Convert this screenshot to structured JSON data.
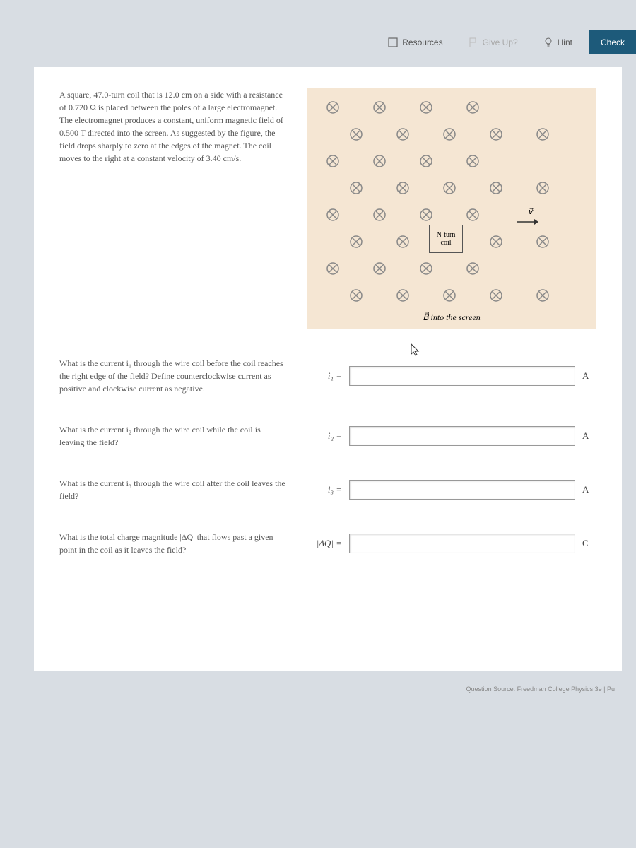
{
  "topbar": {
    "resources_label": "Resources",
    "giveup_label": "Give Up?",
    "hint_label": "Hint",
    "check_label": "Check"
  },
  "problem": {
    "text": "A square, 47.0-turn coil that is 12.0 cm on a side with a resistance of 0.720 Ω is placed between the poles of a large electromagnet. The electromagnet produces a constant, uniform magnetic field of 0.500 T directed into the screen. As suggested by the figure, the field drops sharply to zero at the edges of the magnet. The coil moves to the right at a constant velocity of 3.40 cm/s."
  },
  "diagram": {
    "coil_label_line1": "N-turn",
    "coil_label_line2": "coil",
    "velocity_label": "v⃗",
    "caption": "B⃗ into the screen",
    "background_color": "#f5e6d3",
    "cross_color": "#888888",
    "grid_rows": 8,
    "grid_cols_per_row": [
      4,
      4,
      4,
      4,
      4,
      4,
      4,
      4
    ],
    "row_offset_pattern": "staggered",
    "coil_position": {
      "row": 5,
      "centered_col": 2.5
    }
  },
  "questions": {
    "q1": {
      "text": "What is the current i₁ through the wire coil before the coil reaches the right edge of the field? Define counterclockwise current as positive and clockwise current as negative.",
      "label": "i₁ =",
      "unit": "A",
      "value": ""
    },
    "q2": {
      "text": "What is the current i₂ through the wire coil while the coil is leaving the field?",
      "label": "i₂ =",
      "unit": "A",
      "value": ""
    },
    "q3": {
      "text": "What is the current i₃ through the wire coil after the coil leaves the field?",
      "label": "i₃ =",
      "unit": "A",
      "value": ""
    },
    "q4": {
      "text": "What is the total charge magnitude |ΔQ| that flows past a given point in the coil as it leaves the field?",
      "label": "|ΔQ| =",
      "unit": "C",
      "value": ""
    }
  },
  "source": "Question Source: Freedman College Physics 3e  |  Pu",
  "styling": {
    "page_bg": "#ffffff",
    "body_bg": "#d8dde3",
    "text_color": "#555555",
    "check_btn_bg": "#1d5a7a",
    "input_border": "#999999",
    "font_family_body": "Georgia, serif",
    "font_family_ui": "Arial, sans-serif",
    "q_text_fontsize": 12,
    "label_fontsize": 13
  }
}
